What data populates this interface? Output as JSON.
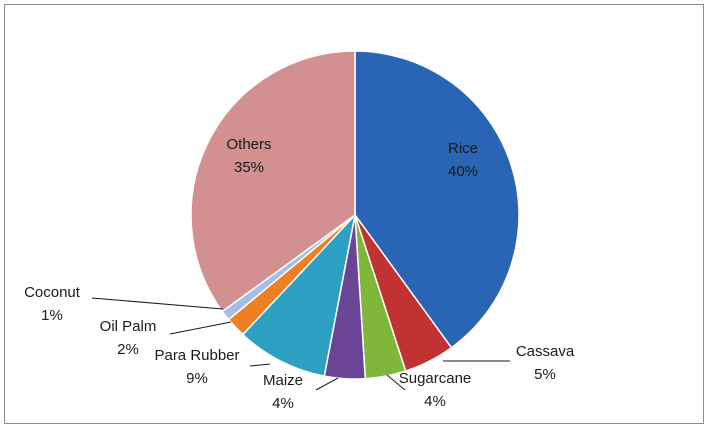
{
  "chart_data": {
    "type": "pie",
    "title": "",
    "start_angle_deg": 0,
    "direction": "clockwise",
    "slices": [
      {
        "label": "Rice",
        "percent_label": "40%",
        "value": 40,
        "color": "#2a64b5"
      },
      {
        "label": "Cassava",
        "percent_label": "5%",
        "value": 5,
        "color": "#c33233"
      },
      {
        "label": "Sugarcane",
        "percent_label": "4%",
        "value": 4,
        "color": "#80b63a"
      },
      {
        "label": "Maize",
        "percent_label": "4%",
        "value": 4,
        "color": "#6a4596"
      },
      {
        "label": "Para Rubber",
        "percent_label": "9%",
        "value": 9,
        "color": "#2da0c4"
      },
      {
        "label": "Oil Palm",
        "percent_label": "2%",
        "value": 2,
        "color": "#ee7f22"
      },
      {
        "label": "Coconut",
        "percent_label": "1%",
        "value": 1,
        "color": "#a4bfe2"
      },
      {
        "label": "Others",
        "percent_label": "35%",
        "value": 35,
        "color": "#d29090"
      }
    ],
    "legend": "none"
  }
}
